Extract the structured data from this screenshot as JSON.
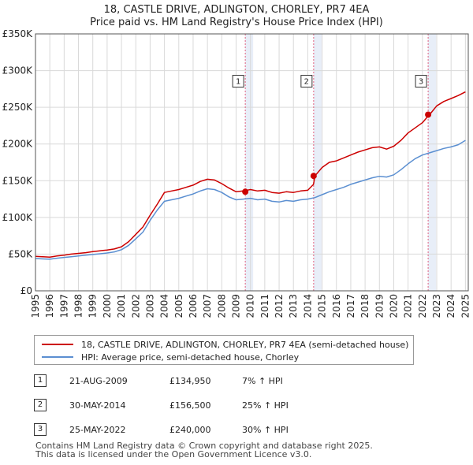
{
  "chart_data": {
    "type": "line",
    "title": "18, CASTLE DRIVE, ADLINGTON, CHORLEY, PR7 4EA",
    "subtitle": "Price paid vs. HM Land Registry's House Price Index (HPI)",
    "xlim": [
      1995,
      2025.2
    ],
    "ylim": [
      0,
      350000
    ],
    "y_ticks": [
      0,
      50000,
      100000,
      150000,
      200000,
      250000,
      300000,
      350000
    ],
    "y_tick_labels": [
      "£0",
      "£50K",
      "£100K",
      "£150K",
      "£200K",
      "£250K",
      "£300K",
      "£350K"
    ],
    "x_ticks": [
      1995,
      1996,
      1997,
      1998,
      1999,
      2000,
      2001,
      2002,
      2003,
      2004,
      2005,
      2006,
      2007,
      2008,
      2009,
      2010,
      2011,
      2012,
      2013,
      2014,
      2015,
      2016,
      2017,
      2018,
      2019,
      2020,
      2021,
      2022,
      2023,
      2024,
      2025
    ],
    "series": [
      {
        "name": "18, CASTLE DRIVE, ADLINGTON, CHORLEY, PR7 4EA (semi-detached house)",
        "color": "#cc0000",
        "x": [
          1995,
          1995.5,
          1996,
          1996.5,
          1997,
          1997.5,
          1998,
          1998.5,
          1999,
          1999.5,
          2000,
          2000.5,
          2001,
          2001.5,
          2002,
          2002.5,
          2003,
          2003.5,
          2004,
          2004.5,
          2005,
          2005.5,
          2006,
          2006.5,
          2007,
          2007.5,
          2008,
          2008.5,
          2009,
          2009.5,
          2010,
          2010.5,
          2011,
          2011.5,
          2012,
          2012.5,
          2013,
          2013.5,
          2014,
          2014.4,
          2014.5,
          2015,
          2015.5,
          2016,
          2016.5,
          2017,
          2017.5,
          2018,
          2018.5,
          2019,
          2019.5,
          2020,
          2020.5,
          2021,
          2021.5,
          2022,
          2022.4,
          2022.5,
          2023,
          2023.5,
          2024,
          2024.5,
          2025
        ],
        "values": [
          47000,
          46500,
          46000,
          47500,
          48500,
          50000,
          51000,
          52000,
          53500,
          54500,
          55500,
          57000,
          60000,
          67000,
          77000,
          87000,
          103000,
          118000,
          134000,
          136000,
          138000,
          141000,
          144000,
          149000,
          152000,
          151000,
          146000,
          140000,
          135000,
          136000,
          138000,
          136000,
          137000,
          134000,
          133000,
          135000,
          134000,
          136000,
          137000,
          145000,
          156500,
          168000,
          175000,
          177000,
          181000,
          185000,
          189000,
          192000,
          195000,
          196000,
          193000,
          197000,
          205000,
          215000,
          222000,
          229000,
          238000,
          240000,
          252000,
          258000,
          262000,
          266000,
          271000
        ]
      },
      {
        "name": "HPI: Average price, semi-detached house, Chorley",
        "color": "#5b8fd1",
        "x": [
          1995,
          1995.5,
          1996,
          1996.5,
          1997,
          1997.5,
          1998,
          1998.5,
          1999,
          1999.5,
          2000,
          2000.5,
          2001,
          2001.5,
          2002,
          2002.5,
          2003,
          2003.5,
          2004,
          2004.5,
          2005,
          2005.5,
          2006,
          2006.5,
          2007,
          2007.5,
          2008,
          2008.5,
          2009,
          2009.5,
          2010,
          2010.5,
          2011,
          2011.5,
          2012,
          2012.5,
          2013,
          2013.5,
          2014,
          2014.5,
          2015,
          2015.5,
          2016,
          2016.5,
          2017,
          2017.5,
          2018,
          2018.5,
          2019,
          2019.5,
          2020,
          2020.5,
          2021,
          2021.5,
          2022,
          2022.5,
          2023,
          2023.5,
          2024,
          2024.5,
          2025
        ],
        "values": [
          44000,
          43500,
          43000,
          44500,
          45500,
          46500,
          47500,
          48500,
          49500,
          50500,
          51500,
          53000,
          56000,
          62000,
          71000,
          80000,
          96000,
          110000,
          122000,
          124000,
          126000,
          129000,
          132000,
          136000,
          139000,
          138000,
          134000,
          128000,
          124000,
          125000,
          126000,
          124000,
          125000,
          122000,
          121000,
          123000,
          122000,
          124000,
          125000,
          127000,
          131000,
          135000,
          138000,
          141000,
          145000,
          148000,
          151000,
          154000,
          156000,
          155000,
          158000,
          165000,
          173000,
          180000,
          185000,
          188000,
          191000,
          194000,
          196000,
          199000,
          205000
        ]
      }
    ],
    "sales": [
      {
        "label": "1",
        "x": 2009.64,
        "value": 134950
      },
      {
        "label": "2",
        "x": 2014.41,
        "value": 156500
      },
      {
        "label": "3",
        "x": 2022.4,
        "value": 240000
      }
    ],
    "marker_box_value": 285000
  },
  "legend": {
    "property_label": "18, CASTLE DRIVE, ADLINGTON, CHORLEY, PR7 4EA (semi-detached house)",
    "hpi_label": "HPI: Average price, semi-detached house, Chorley"
  },
  "transactions": [
    {
      "num": "1",
      "date": "21-AUG-2009",
      "price": "£134,950",
      "hpi": "7% ↑ HPI"
    },
    {
      "num": "2",
      "date": "30-MAY-2014",
      "price": "£156,500",
      "hpi": "25% ↑ HPI"
    },
    {
      "num": "3",
      "date": "25-MAY-2022",
      "price": "£240,000",
      "hpi": "30% ↑ HPI"
    }
  ],
  "footer": {
    "line1": "Contains HM Land Registry data © Crown copyright and database right 2025.",
    "line2": "This data is licensed under the Open Government Licence v3.0."
  },
  "colors": {
    "property": "#cc0000",
    "hpi": "#5b8fd1",
    "band": "#e8eef8",
    "grid": "#d9d9d9",
    "sale_line": "#e06080"
  }
}
